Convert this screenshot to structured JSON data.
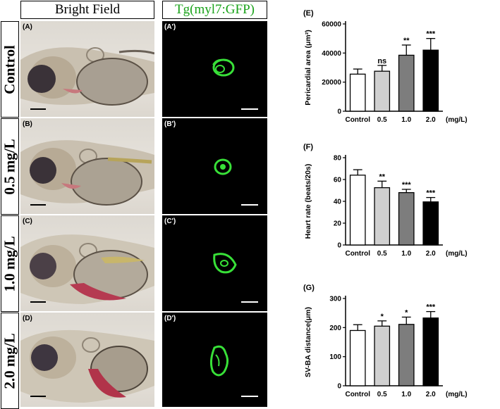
{
  "headers": {
    "bright_field": "Bright Field",
    "fluorescence": "Tg(myl7:GFP)"
  },
  "colors": {
    "fluor_header": "#1aa31a",
    "gfp": "#38e038"
  },
  "rows": [
    {
      "label": "Control",
      "bf_label": "(A)",
      "fl_label": "(A')"
    },
    {
      "label": "0.5 mg/L",
      "bf_label": "(B)",
      "fl_label": "(B')"
    },
    {
      "label": "1.0 mg/L",
      "bf_label": "(C)",
      "fl_label": "(C')"
    },
    {
      "label": "2.0 mg/L",
      "bf_label": "(D)",
      "fl_label": "(D')"
    }
  ],
  "chart_data": [
    {
      "type": "bar",
      "panel_label": "(E)",
      "categories": [
        "Control",
        "0.5",
        "1.0",
        "2.0"
      ],
      "unit_label": "(mg/L)",
      "ylabel": "Pericardial area (μm²)",
      "ylim": [
        0,
        60000
      ],
      "yticks": [
        0,
        20000,
        40000,
        60000
      ],
      "values": [
        25500,
        27500,
        38500,
        42000
      ],
      "errors": [
        3500,
        4000,
        7000,
        8000
      ],
      "significance": [
        "",
        "ns",
        "**",
        "***"
      ],
      "bar_colors": [
        "#ffffff",
        "#d0d0d0",
        "#7d7d7d",
        "#000000"
      ]
    },
    {
      "type": "bar",
      "panel_label": "(F)",
      "categories": [
        "Control",
        "0.5",
        "1.0",
        "2.0"
      ],
      "unit_label": "(mg/L)",
      "ylabel": "Heart rate (beats/20s)",
      "ylim": [
        0,
        80
      ],
      "yticks": [
        0,
        20,
        40,
        60,
        80
      ],
      "values": [
        64,
        52.5,
        48,
        39.5
      ],
      "errors": [
        5,
        6,
        3,
        4
      ],
      "significance": [
        "",
        "**",
        "***",
        "***"
      ],
      "bar_colors": [
        "#ffffff",
        "#d0d0d0",
        "#7d7d7d",
        "#000000"
      ]
    },
    {
      "type": "bar",
      "panel_label": "(G)",
      "categories": [
        "Control",
        "0.5",
        "1.0",
        "2.0"
      ],
      "unit_label": "(mg/L)",
      "ylabel": "SV-BA distance(μm)",
      "ylim": [
        0,
        300
      ],
      "yticks": [
        0,
        100,
        200,
        300
      ],
      "values": [
        190,
        205,
        211,
        233
      ],
      "errors": [
        20,
        18,
        25,
        22
      ],
      "significance": [
        "",
        "*",
        "*",
        "***"
      ],
      "bar_colors": [
        "#ffffff",
        "#d0d0d0",
        "#7d7d7d",
        "#000000"
      ]
    }
  ]
}
